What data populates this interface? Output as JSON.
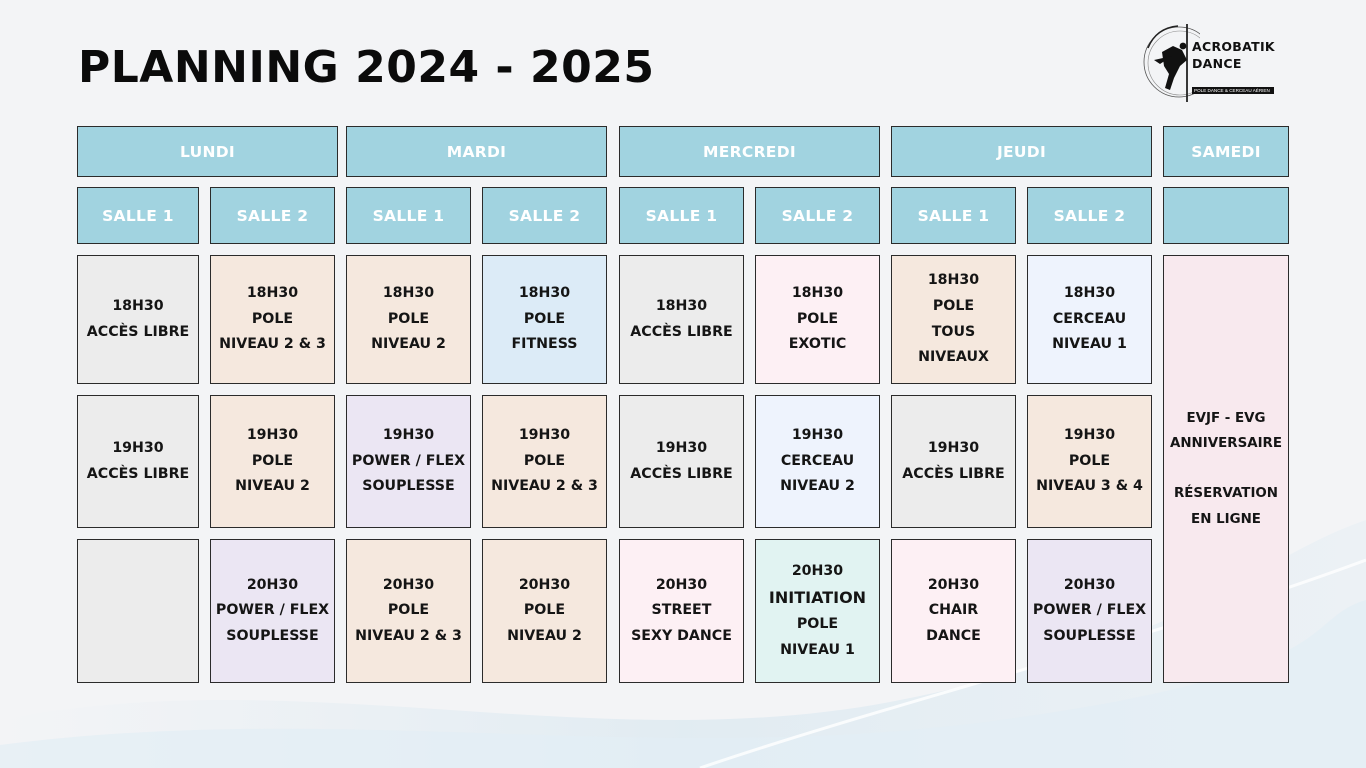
{
  "page": {
    "title": "PLANNING 2024 - 2025"
  },
  "logo": {
    "icon": "pole-dancer-silhouette-icon",
    "name_line1": "ACROBATIK",
    "name_line2": "DANCE",
    "tagline": "POLE DANCE & CERCEAU AÉRIEN"
  },
  "days": [
    "LUNDI",
    "MARDI",
    "MERCREDI",
    "JEUDI",
    "SAMEDI"
  ],
  "rooms": [
    "SALLE 1",
    "SALLE 2",
    "SALLE 1",
    "SALLE 2",
    "SALLE 1",
    "SALLE 2",
    "SALLE 1",
    "SALLE 2",
    ""
  ],
  "colors": {
    "background": "#f3f4f6",
    "header_fill": "#a1d3e0",
    "header_text": "#ffffff",
    "border": "#2b2b2b",
    "grey": "#ececec",
    "peach": "#f5e8de",
    "lavender": "#ebe6f3",
    "light_blue": "#dcebf7",
    "pale_blue": "#eef3fd",
    "pink": "#fdf0f4",
    "mint": "#e1f3f2",
    "samedi_pink": "#f8e9ee"
  },
  "schedule": [
    [
      [
        "18H30",
        "ACCÈS LIBRE"
      ],
      [
        "18H30",
        "POLE",
        "NIVEAU 2 & 3"
      ],
      [
        "18H30",
        "POLE",
        "NIVEAU 2"
      ],
      [
        "18H30",
        "POLE",
        "FITNESS"
      ],
      [
        "18H30",
        "ACCÈS LIBRE"
      ],
      [
        "18H30",
        "POLE",
        "EXOTIC"
      ],
      [
        "18H30",
        "POLE",
        "TOUS",
        "NIVEAUX"
      ],
      [
        "18H30",
        "CERCEAU",
        "NIVEAU 1"
      ]
    ],
    [
      [
        "19H30",
        "ACCÈS LIBRE"
      ],
      [
        "19H30",
        "POLE",
        "NIVEAU 2"
      ],
      [
        "19H30",
        "POWER / FLEX",
        "SOUPLESSE"
      ],
      [
        "19H30",
        "POLE",
        "NIVEAU 2 & 3"
      ],
      [
        "19H30",
        "ACCÈS LIBRE"
      ],
      [
        "19H30",
        "CERCEAU",
        "NIVEAU 2"
      ],
      [
        "19H30",
        "ACCÈS LIBRE"
      ],
      [
        "19H30",
        "POLE",
        "NIVEAU 3 & 4"
      ]
    ],
    [
      [],
      [
        "20H30",
        "POWER / FLEX",
        "SOUPLESSE"
      ],
      [
        "20H30",
        "POLE",
        "NIVEAU 2 & 3"
      ],
      [
        "20H30",
        "POLE",
        "NIVEAU 2"
      ],
      [
        "20H30",
        "STREET",
        "SEXY DANCE"
      ],
      [
        "20H30",
        "INITIATION",
        "POLE",
        "NIVEAU 1"
      ],
      [
        "20H30",
        "CHAIR",
        "DANCE"
      ],
      [
        "20H30",
        "POWER / FLEX",
        "SOUPLESSE"
      ]
    ]
  ],
  "samedi": [
    "EVJF - EVG",
    "ANNIVERSAIRE",
    "",
    "RÉSERVATION",
    "EN LIGNE"
  ]
}
